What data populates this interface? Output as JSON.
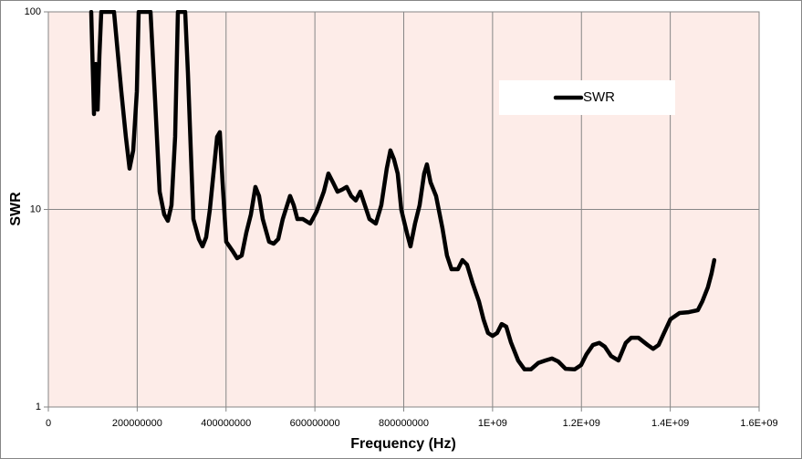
{
  "chart_data": {
    "type": "line",
    "xlabel": "Frequency (Hz)",
    "ylabel": "SWR",
    "log_y": true,
    "grid": true,
    "legend": "upper right",
    "xlim": [
      0,
      1600000000
    ],
    "xticks": [
      0,
      200000000,
      400000000,
      600000000,
      800000000,
      {
        "value": 1000000000,
        "label": "1E+09"
      },
      {
        "value": 1200000000,
        "label": "1.2E+09"
      },
      {
        "value": 1400000000,
        "label": "1.4E+09"
      },
      {
        "value": 1600000000,
        "label": "1.6E+09"
      }
    ],
    "ylim": [
      1,
      100
    ],
    "yticks": [
      1,
      10,
      100
    ],
    "x": [
      96500000,
      102700000,
      106800000,
      110900000,
      115000000,
      119100000,
      147800000,
      164200000,
      174500000,
      182800000,
      191000000,
      199200000,
      203300000,
      230000000,
      240300000,
      250500000,
      260800000,
      269000000,
      277200000,
      285400000,
      291600000,
      308000000,
      314200000,
      320300000,
      326500000,
      338800000,
      347000000,
      355200000,
      363500000,
      373700000,
      379900000,
      386000000,
      392200000,
      400400000,
      414800000,
      425100000,
      435300000,
      445600000,
      455900000,
      466100000,
      474300000,
      482600000,
      496900000,
      507200000,
      517500000,
      527700000,
      544100000,
      552400000,
      560600000,
      572900000,
      589400000,
      603700000,
      620100000,
      630400000,
      640700000,
      650900000,
      661200000,
      671500000,
      681700000,
      692000000,
      702300000,
      712500000,
      722800000,
      737200000,
      749500000,
      761800000,
      770000000,
      778200000,
      786400000,
      794600000,
      807000000,
      815200000,
      825400000,
      835700000,
      846000000,
      852200000,
      860400000,
      872700000,
      887100000,
      897300000,
      907600000,
      922000000,
      932200000,
      942500000,
      954800000,
      969200000,
      979500000,
      989700000,
      1000000000,
      1010300000,
      1020500000,
      1030800000,
      1041100000,
      1057500000,
      1071900000,
      1086200000,
      1102700000,
      1119100000,
      1133500000,
      1147800000,
      1164300000,
      1184800000,
      1199200000,
      1211500000,
      1225900000,
      1240200000,
      1252600000,
      1266900000,
      1283400000,
      1299800000,
      1312100000,
      1328500000,
      1349100000,
      1361400000,
      1373700000,
      1386000000,
      1400400000,
      1420900000,
      1441500000,
      1462000000,
      1472300000,
      1484600000,
      1492800000,
      1499000000
    ],
    "series": [
      {
        "name": "SWR",
        "color": "#000000",
        "values": [
          100,
          30.4,
          54.5,
          32.0,
          60.7,
          100,
          100,
          39.6,
          23.3,
          16.1,
          19.9,
          39.6,
          100,
          100,
          35.6,
          12.3,
          9.43,
          8.76,
          10.5,
          23.3,
          100,
          100,
          49.0,
          20.9,
          8.94,
          7.08,
          6.5,
          7.23,
          9.95,
          16.9,
          23.3,
          24.6,
          13.7,
          6.86,
          6.16,
          5.66,
          5.85,
          7.62,
          9.43,
          13.0,
          11.7,
          8.94,
          6.86,
          6.71,
          7.08,
          8.94,
          11.7,
          10.5,
          8.94,
          8.94,
          8.48,
          9.74,
          12.3,
          15.2,
          13.7,
          12.3,
          12.6,
          13.0,
          11.7,
          11.1,
          12.3,
          10.5,
          8.94,
          8.48,
          10.5,
          16.1,
          19.9,
          17.9,
          15.2,
          9.95,
          7.62,
          6.5,
          8.48,
          10.5,
          15.2,
          16.9,
          13.7,
          11.7,
          8.04,
          5.85,
          4.98,
          4.98,
          5.54,
          5.25,
          4.25,
          3.43,
          2.78,
          2.37,
          2.29,
          2.37,
          2.63,
          2.55,
          2.13,
          1.72,
          1.55,
          1.55,
          1.67,
          1.72,
          1.76,
          1.7,
          1.56,
          1.55,
          1.63,
          1.85,
          2.06,
          2.11,
          2.02,
          1.81,
          1.72,
          2.11,
          2.24,
          2.24,
          2.06,
          1.97,
          2.06,
          2.37,
          2.78,
          2.99,
          3.02,
          3.09,
          3.43,
          4.03,
          4.73,
          5.54
        ]
      }
    ]
  }
}
